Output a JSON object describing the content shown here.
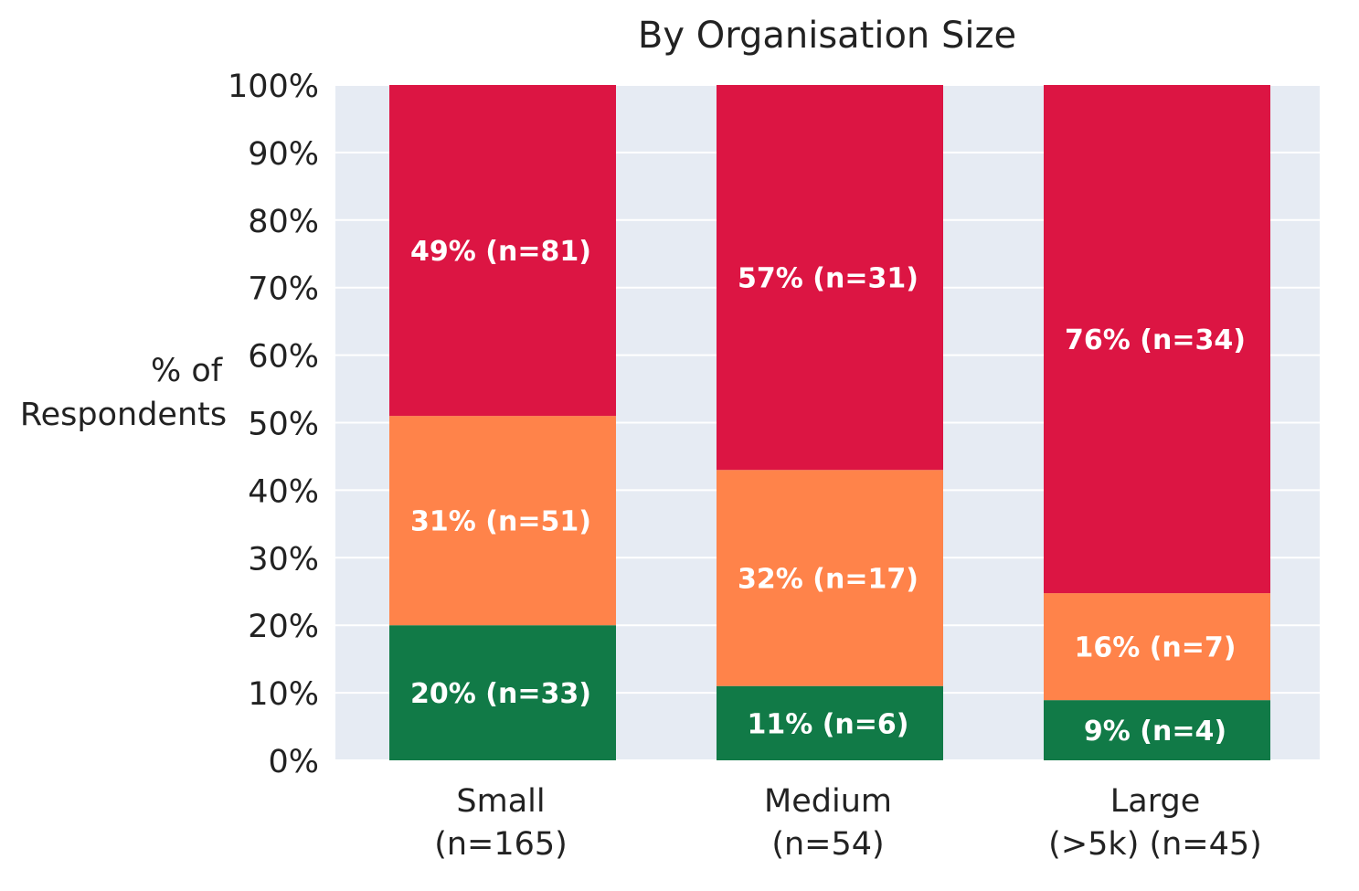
{
  "chart_data": {
    "type": "bar",
    "stacked": true,
    "title": "By Organisation Size",
    "ylabel": "% of Respondents",
    "ylabel_lines": [
      "% of",
      "Respondents"
    ],
    "ylim": [
      0,
      100
    ],
    "yticks": [
      0,
      10,
      20,
      30,
      40,
      50,
      60,
      70,
      80,
      90,
      100
    ],
    "ytick_labels": [
      "0%",
      "10%",
      "20%",
      "30%",
      "40%",
      "50%",
      "60%",
      "70%",
      "80%",
      "90%",
      "100%"
    ],
    "grid": true,
    "categories": [
      {
        "lines": [
          "Small",
          "(n=165)"
        ]
      },
      {
        "lines": [
          "Medium",
          "(n=54)"
        ]
      },
      {
        "lines": [
          "Large",
          "(>5k) (n=45)"
        ]
      }
    ],
    "series": [
      {
        "color": "#117a47",
        "values": [
          20,
          11,
          9
        ],
        "labels": [
          "20% (n=33)",
          "11% (n=6)",
          "9% (n=4)"
        ]
      },
      {
        "color": "#ff834a",
        "values": [
          31,
          32,
          16
        ],
        "labels": [
          "31% (n=51)",
          "32% (n=17)",
          "16% (n=7)"
        ]
      },
      {
        "color": "#dc1543",
        "values": [
          49,
          57,
          76
        ],
        "labels": [
          "49% (n=81)",
          "57% (n=31)",
          "76% (n=34)"
        ]
      }
    ],
    "colors": {
      "plot_background": "#e6ebf3",
      "grid": "#ffffff"
    }
  }
}
